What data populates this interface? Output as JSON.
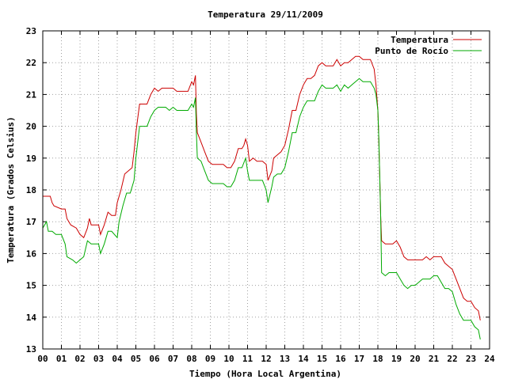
{
  "chart_data": {
    "type": "line",
    "title": "Temperatura 29/11/2009",
    "xlabel": "Tiempo (Hora Local Argentina)",
    "ylabel": "Temperatura (Grados Celsius)",
    "xlim": [
      0,
      24
    ],
    "ylim": [
      13,
      23
    ],
    "x_ticks": [
      0,
      1,
      2,
      3,
      4,
      5,
      6,
      7,
      8,
      9,
      10,
      11,
      12,
      13,
      14,
      15,
      16,
      17,
      18,
      19,
      20,
      21,
      22,
      23,
      24
    ],
    "x_tick_labels": [
      "00",
      "01",
      "02",
      "03",
      "04",
      "05",
      "06",
      "07",
      "08",
      "09",
      "10",
      "11",
      "12",
      "13",
      "14",
      "15",
      "16",
      "17",
      "18",
      "19",
      "20",
      "21",
      "22",
      "23",
      "24"
    ],
    "y_ticks": [
      13,
      14,
      15,
      16,
      17,
      18,
      19,
      20,
      21,
      22,
      23
    ],
    "y_tick_labels": [
      "13",
      "14",
      "15",
      "16",
      "17",
      "18",
      "19",
      "20",
      "21",
      "22",
      "23"
    ],
    "grid": true,
    "legend_position": "top-right",
    "series": [
      {
        "name": "Temperatura",
        "color": "#cc0000",
        "points": [
          [
            0.0,
            17.8
          ],
          [
            0.4,
            17.8
          ],
          [
            0.5,
            17.6
          ],
          [
            0.6,
            17.5
          ],
          [
            1.0,
            17.4
          ],
          [
            1.2,
            17.4
          ],
          [
            1.3,
            17.1
          ],
          [
            1.5,
            16.9
          ],
          [
            1.8,
            16.8
          ],
          [
            2.0,
            16.6
          ],
          [
            2.2,
            16.5
          ],
          [
            2.4,
            16.8
          ],
          [
            2.5,
            17.1
          ],
          [
            2.6,
            16.9
          ],
          [
            3.0,
            16.9
          ],
          [
            3.1,
            16.6
          ],
          [
            3.3,
            16.9
          ],
          [
            3.5,
            17.3
          ],
          [
            3.7,
            17.2
          ],
          [
            3.9,
            17.2
          ],
          [
            4.0,
            17.6
          ],
          [
            4.2,
            18.0
          ],
          [
            4.4,
            18.5
          ],
          [
            4.6,
            18.6
          ],
          [
            4.8,
            18.7
          ],
          [
            4.9,
            19.2
          ],
          [
            5.0,
            19.8
          ],
          [
            5.2,
            20.7
          ],
          [
            5.4,
            20.7
          ],
          [
            5.6,
            20.7
          ],
          [
            5.8,
            21.0
          ],
          [
            6.0,
            21.2
          ],
          [
            6.2,
            21.1
          ],
          [
            6.4,
            21.2
          ],
          [
            6.6,
            21.2
          ],
          [
            6.8,
            21.2
          ],
          [
            7.0,
            21.2
          ],
          [
            7.2,
            21.1
          ],
          [
            7.4,
            21.1
          ],
          [
            7.6,
            21.1
          ],
          [
            7.8,
            21.1
          ],
          [
            8.0,
            21.4
          ],
          [
            8.1,
            21.3
          ],
          [
            8.2,
            21.6
          ],
          [
            8.25,
            20.4
          ],
          [
            8.3,
            19.8
          ],
          [
            8.5,
            19.5
          ],
          [
            8.7,
            19.2
          ],
          [
            8.9,
            18.9
          ],
          [
            9.1,
            18.8
          ],
          [
            9.3,
            18.8
          ],
          [
            9.5,
            18.8
          ],
          [
            9.7,
            18.8
          ],
          [
            9.9,
            18.7
          ],
          [
            10.1,
            18.7
          ],
          [
            10.3,
            18.9
          ],
          [
            10.5,
            19.3
          ],
          [
            10.7,
            19.3
          ],
          [
            10.8,
            19.4
          ],
          [
            10.9,
            19.6
          ],
          [
            11.0,
            19.4
          ],
          [
            11.1,
            18.9
          ],
          [
            11.3,
            19.0
          ],
          [
            11.5,
            18.9
          ],
          [
            11.8,
            18.9
          ],
          [
            12.0,
            18.8
          ],
          [
            12.1,
            18.3
          ],
          [
            12.3,
            18.6
          ],
          [
            12.4,
            19.0
          ],
          [
            12.6,
            19.1
          ],
          [
            12.8,
            19.2
          ],
          [
            13.0,
            19.4
          ],
          [
            13.2,
            19.9
          ],
          [
            13.4,
            20.5
          ],
          [
            13.6,
            20.5
          ],
          [
            13.8,
            21.0
          ],
          [
            14.0,
            21.3
          ],
          [
            14.2,
            21.5
          ],
          [
            14.4,
            21.5
          ],
          [
            14.6,
            21.6
          ],
          [
            14.8,
            21.9
          ],
          [
            15.0,
            22.0
          ],
          [
            15.2,
            21.9
          ],
          [
            15.4,
            21.9
          ],
          [
            15.6,
            21.9
          ],
          [
            15.8,
            22.1
          ],
          [
            16.0,
            21.9
          ],
          [
            16.2,
            22.0
          ],
          [
            16.4,
            22.0
          ],
          [
            16.6,
            22.1
          ],
          [
            16.8,
            22.2
          ],
          [
            17.0,
            22.2
          ],
          [
            17.2,
            22.1
          ],
          [
            17.4,
            22.1
          ],
          [
            17.6,
            22.1
          ],
          [
            17.8,
            21.8
          ],
          [
            17.9,
            21.3
          ],
          [
            18.0,
            20.5
          ],
          [
            18.05,
            19.6
          ],
          [
            18.1,
            18.4
          ],
          [
            18.15,
            17.2
          ],
          [
            18.2,
            16.4
          ],
          [
            18.4,
            16.3
          ],
          [
            18.6,
            16.3
          ],
          [
            18.8,
            16.3
          ],
          [
            19.0,
            16.4
          ],
          [
            19.2,
            16.2
          ],
          [
            19.4,
            15.9
          ],
          [
            19.6,
            15.8
          ],
          [
            19.8,
            15.8
          ],
          [
            20.0,
            15.8
          ],
          [
            20.2,
            15.8
          ],
          [
            20.4,
            15.8
          ],
          [
            20.6,
            15.9
          ],
          [
            20.8,
            15.8
          ],
          [
            21.0,
            15.9
          ],
          [
            21.2,
            15.9
          ],
          [
            21.4,
            15.9
          ],
          [
            21.6,
            15.7
          ],
          [
            21.8,
            15.6
          ],
          [
            22.0,
            15.5
          ],
          [
            22.2,
            15.2
          ],
          [
            22.4,
            14.9
          ],
          [
            22.6,
            14.6
          ],
          [
            22.8,
            14.5
          ],
          [
            23.0,
            14.5
          ],
          [
            23.2,
            14.3
          ],
          [
            23.4,
            14.2
          ],
          [
            23.5,
            13.9
          ]
        ]
      },
      {
        "name": "Punto de Rocío",
        "color": "#00aa00",
        "points": [
          [
            0.0,
            16.8
          ],
          [
            0.2,
            17.0
          ],
          [
            0.3,
            16.7
          ],
          [
            0.5,
            16.7
          ],
          [
            0.7,
            16.6
          ],
          [
            1.0,
            16.6
          ],
          [
            1.2,
            16.3
          ],
          [
            1.3,
            15.9
          ],
          [
            1.6,
            15.8
          ],
          [
            1.8,
            15.7
          ],
          [
            2.0,
            15.8
          ],
          [
            2.2,
            15.9
          ],
          [
            2.4,
            16.4
          ],
          [
            2.6,
            16.3
          ],
          [
            3.0,
            16.3
          ],
          [
            3.1,
            16.0
          ],
          [
            3.3,
            16.3
          ],
          [
            3.5,
            16.7
          ],
          [
            3.7,
            16.7
          ],
          [
            4.0,
            16.5
          ],
          [
            4.1,
            17.0
          ],
          [
            4.3,
            17.5
          ],
          [
            4.5,
            17.9
          ],
          [
            4.7,
            17.9
          ],
          [
            4.9,
            18.3
          ],
          [
            5.0,
            19.0
          ],
          [
            5.2,
            20.0
          ],
          [
            5.4,
            20.0
          ],
          [
            5.6,
            20.0
          ],
          [
            5.8,
            20.3
          ],
          [
            6.0,
            20.5
          ],
          [
            6.2,
            20.6
          ],
          [
            6.4,
            20.6
          ],
          [
            6.6,
            20.6
          ],
          [
            6.8,
            20.5
          ],
          [
            7.0,
            20.6
          ],
          [
            7.2,
            20.5
          ],
          [
            7.4,
            20.5
          ],
          [
            7.6,
            20.5
          ],
          [
            7.8,
            20.5
          ],
          [
            8.0,
            20.7
          ],
          [
            8.1,
            20.6
          ],
          [
            8.2,
            20.9
          ],
          [
            8.25,
            19.8
          ],
          [
            8.3,
            19.0
          ],
          [
            8.5,
            18.9
          ],
          [
            8.7,
            18.6
          ],
          [
            8.9,
            18.3
          ],
          [
            9.1,
            18.2
          ],
          [
            9.3,
            18.2
          ],
          [
            9.5,
            18.2
          ],
          [
            9.7,
            18.2
          ],
          [
            9.9,
            18.1
          ],
          [
            10.1,
            18.1
          ],
          [
            10.3,
            18.3
          ],
          [
            10.5,
            18.7
          ],
          [
            10.7,
            18.7
          ],
          [
            10.9,
            19.0
          ],
          [
            11.0,
            18.6
          ],
          [
            11.1,
            18.3
          ],
          [
            11.3,
            18.3
          ],
          [
            11.5,
            18.3
          ],
          [
            11.8,
            18.3
          ],
          [
            12.0,
            18.0
          ],
          [
            12.1,
            17.6
          ],
          [
            12.3,
            18.1
          ],
          [
            12.4,
            18.4
          ],
          [
            12.6,
            18.5
          ],
          [
            12.8,
            18.5
          ],
          [
            13.0,
            18.7
          ],
          [
            13.2,
            19.2
          ],
          [
            13.4,
            19.8
          ],
          [
            13.6,
            19.8
          ],
          [
            13.8,
            20.3
          ],
          [
            14.0,
            20.6
          ],
          [
            14.2,
            20.8
          ],
          [
            14.4,
            20.8
          ],
          [
            14.6,
            20.8
          ],
          [
            14.8,
            21.1
          ],
          [
            15.0,
            21.3
          ],
          [
            15.2,
            21.2
          ],
          [
            15.4,
            21.2
          ],
          [
            15.6,
            21.2
          ],
          [
            15.8,
            21.3
          ],
          [
            16.0,
            21.1
          ],
          [
            16.2,
            21.3
          ],
          [
            16.4,
            21.2
          ],
          [
            16.6,
            21.3
          ],
          [
            16.8,
            21.4
          ],
          [
            17.0,
            21.5
          ],
          [
            17.2,
            21.4
          ],
          [
            17.4,
            21.4
          ],
          [
            17.6,
            21.4
          ],
          [
            17.8,
            21.2
          ],
          [
            17.9,
            21.0
          ],
          [
            18.0,
            20.5
          ],
          [
            18.05,
            19.6
          ],
          [
            18.1,
            18.4
          ],
          [
            18.15,
            17.2
          ],
          [
            18.2,
            15.4
          ],
          [
            18.4,
            15.3
          ],
          [
            18.6,
            15.4
          ],
          [
            18.8,
            15.4
          ],
          [
            19.0,
            15.4
          ],
          [
            19.2,
            15.2
          ],
          [
            19.4,
            15.0
          ],
          [
            19.6,
            14.9
          ],
          [
            19.8,
            15.0
          ],
          [
            20.0,
            15.0
          ],
          [
            20.2,
            15.1
          ],
          [
            20.4,
            15.2
          ],
          [
            20.6,
            15.2
          ],
          [
            20.8,
            15.2
          ],
          [
            21.0,
            15.3
          ],
          [
            21.2,
            15.3
          ],
          [
            21.4,
            15.1
          ],
          [
            21.6,
            14.9
          ],
          [
            21.8,
            14.9
          ],
          [
            22.0,
            14.8
          ],
          [
            22.2,
            14.4
          ],
          [
            22.4,
            14.1
          ],
          [
            22.6,
            13.9
          ],
          [
            22.8,
            13.9
          ],
          [
            23.0,
            13.9
          ],
          [
            23.2,
            13.7
          ],
          [
            23.4,
            13.6
          ],
          [
            23.5,
            13.3
          ]
        ]
      }
    ]
  }
}
